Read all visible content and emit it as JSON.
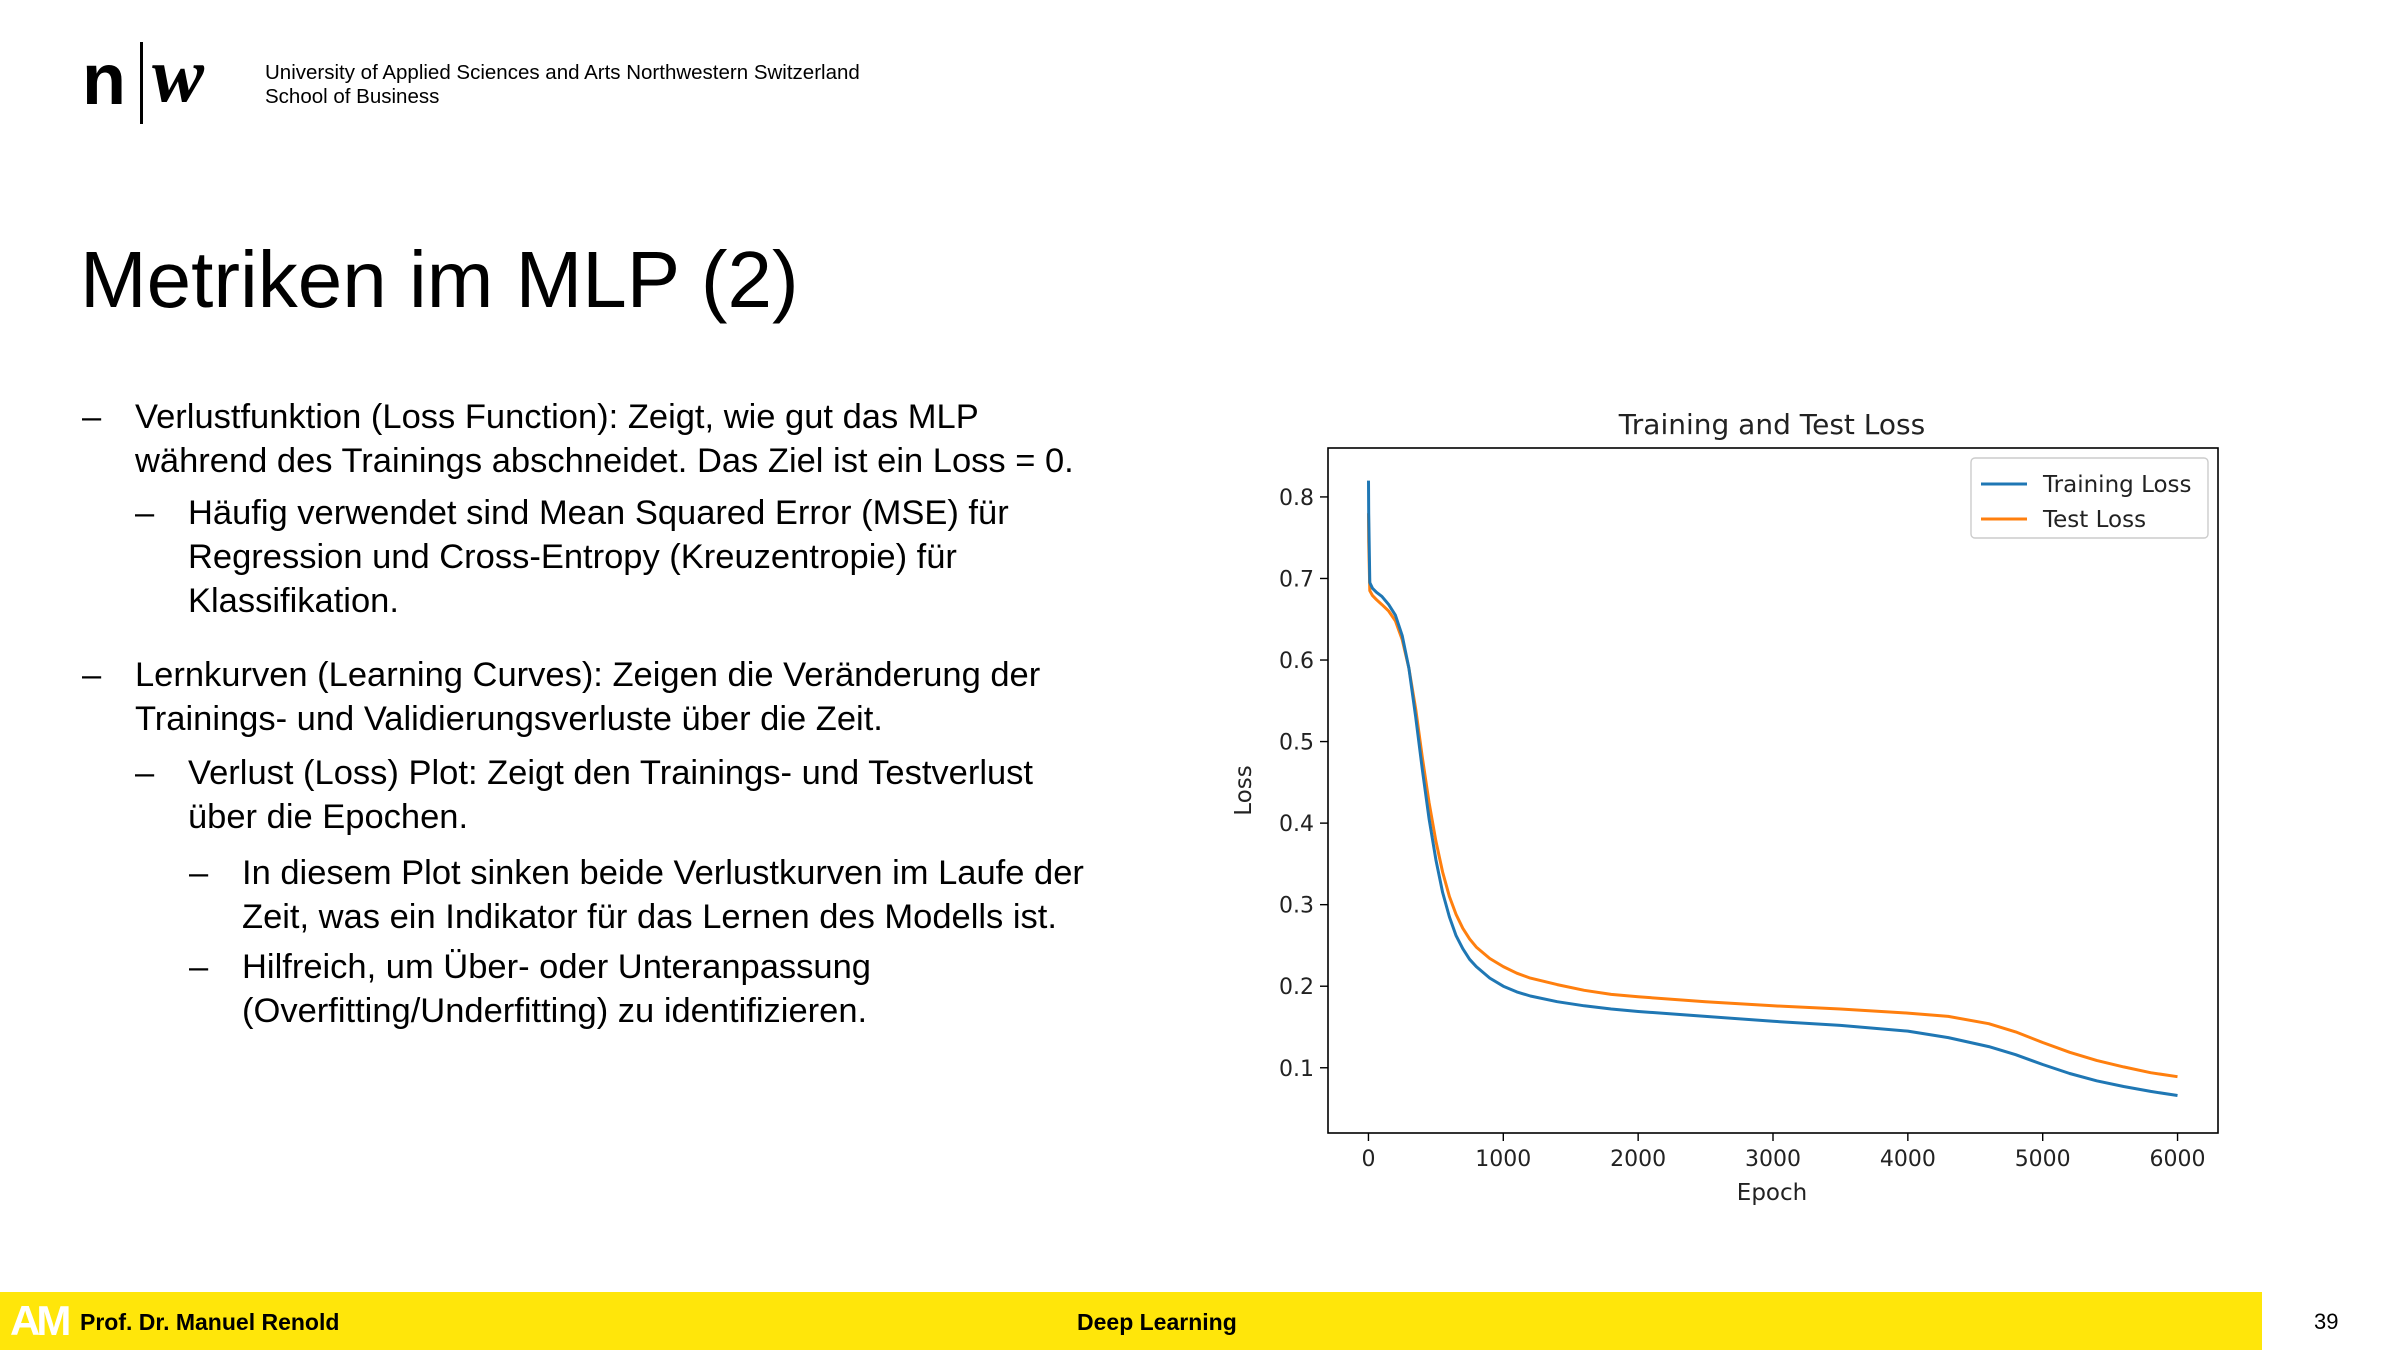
{
  "header": {
    "logo_n": "n",
    "logo_w": "w",
    "institution_line1": "University of Applied Sciences and Arts Northwestern Switzerland",
    "institution_line2": "School of Business"
  },
  "slide": {
    "title": "Metriken im MLP (2)",
    "bullets": [
      {
        "level": 1,
        "lines": [
          "Verlustfunktion (Loss Function): Zeigt, wie gut das MLP",
          "während des Trainings abschneidet. Das Ziel ist ein Loss = 0."
        ]
      },
      {
        "level": 2,
        "lines": [
          "Häufig verwendet sind Mean Squared Error (MSE) für",
          "Regression und Cross-Entropy (Kreuzentropie) für",
          "Klassifikation."
        ]
      },
      {
        "level": 1,
        "lines": [
          "Lernkurven (Learning Curves): Zeigen die Veränderung der",
          "Trainings- und Validierungsverluste über die Zeit."
        ]
      },
      {
        "level": 2,
        "lines": [
          "Verlust (Loss) Plot: Zeigt den Trainings- und Testverlust",
          "über die Epochen."
        ]
      },
      {
        "level": 3,
        "lines": [
          "In diesem Plot sinken beide Verlustkurven im Laufe der",
          "Zeit, was ein Indikator für das Lernen des Modells ist."
        ]
      },
      {
        "level": 3,
        "lines": [
          "Hilfreich, um Über- oder Unteranpassung",
          "(Overfitting/Underfitting) zu identifizieren."
        ]
      }
    ],
    "dash": "–"
  },
  "footer": {
    "logo_text": "AM",
    "author": "Prof. Dr. Manuel Renold",
    "course": "Deep Learning",
    "page": "39",
    "bar_color": "#ffe60a"
  },
  "chart_data": {
    "type": "line",
    "title": "Training and Test Loss",
    "xlabel": "Epoch",
    "ylabel": "Loss",
    "xlim": [
      -300,
      6300
    ],
    "ylim": [
      0.02,
      0.86
    ],
    "xticks": [
      0,
      1000,
      2000,
      3000,
      4000,
      5000,
      6000
    ],
    "yticks": [
      0.1,
      0.2,
      0.3,
      0.4,
      0.5,
      0.6,
      0.7,
      0.8
    ],
    "grid": false,
    "legend_position": "top-right",
    "series": [
      {
        "name": "Training Loss",
        "color": "#1f77b4",
        "x": [
          0,
          2,
          10,
          30,
          60,
          100,
          150,
          200,
          250,
          300,
          350,
          400,
          450,
          500,
          550,
          600,
          650,
          700,
          750,
          800,
          900,
          1000,
          1100,
          1200,
          1400,
          1600,
          1800,
          2000,
          2500,
          3000,
          3500,
          4000,
          4300,
          4600,
          4800,
          5000,
          5200,
          5400,
          5600,
          5800,
          6000
        ],
        "y": [
          0.82,
          0.78,
          0.695,
          0.688,
          0.683,
          0.678,
          0.668,
          0.655,
          0.63,
          0.59,
          0.53,
          0.465,
          0.405,
          0.355,
          0.315,
          0.285,
          0.262,
          0.246,
          0.233,
          0.224,
          0.21,
          0.2,
          0.193,
          0.188,
          0.181,
          0.176,
          0.172,
          0.169,
          0.163,
          0.157,
          0.152,
          0.145,
          0.137,
          0.126,
          0.116,
          0.104,
          0.093,
          0.084,
          0.077,
          0.071,
          0.066
        ]
      },
      {
        "name": "Test Loss",
        "color": "#ff7f0e",
        "x": [
          0,
          2,
          10,
          30,
          60,
          100,
          150,
          200,
          250,
          300,
          350,
          400,
          450,
          500,
          550,
          600,
          650,
          700,
          750,
          800,
          900,
          1000,
          1100,
          1200,
          1400,
          1600,
          1800,
          2000,
          2500,
          3000,
          3500,
          4000,
          4300,
          4600,
          4800,
          5000,
          5200,
          5400,
          5600,
          5800,
          6000
        ],
        "y": [
          0.78,
          0.745,
          0.685,
          0.679,
          0.674,
          0.668,
          0.66,
          0.648,
          0.625,
          0.59,
          0.54,
          0.48,
          0.425,
          0.378,
          0.34,
          0.31,
          0.288,
          0.271,
          0.258,
          0.248,
          0.234,
          0.224,
          0.216,
          0.21,
          0.202,
          0.195,
          0.19,
          0.187,
          0.181,
          0.176,
          0.172,
          0.167,
          0.163,
          0.154,
          0.144,
          0.131,
          0.119,
          0.109,
          0.101,
          0.094,
          0.089
        ]
      }
    ]
  }
}
